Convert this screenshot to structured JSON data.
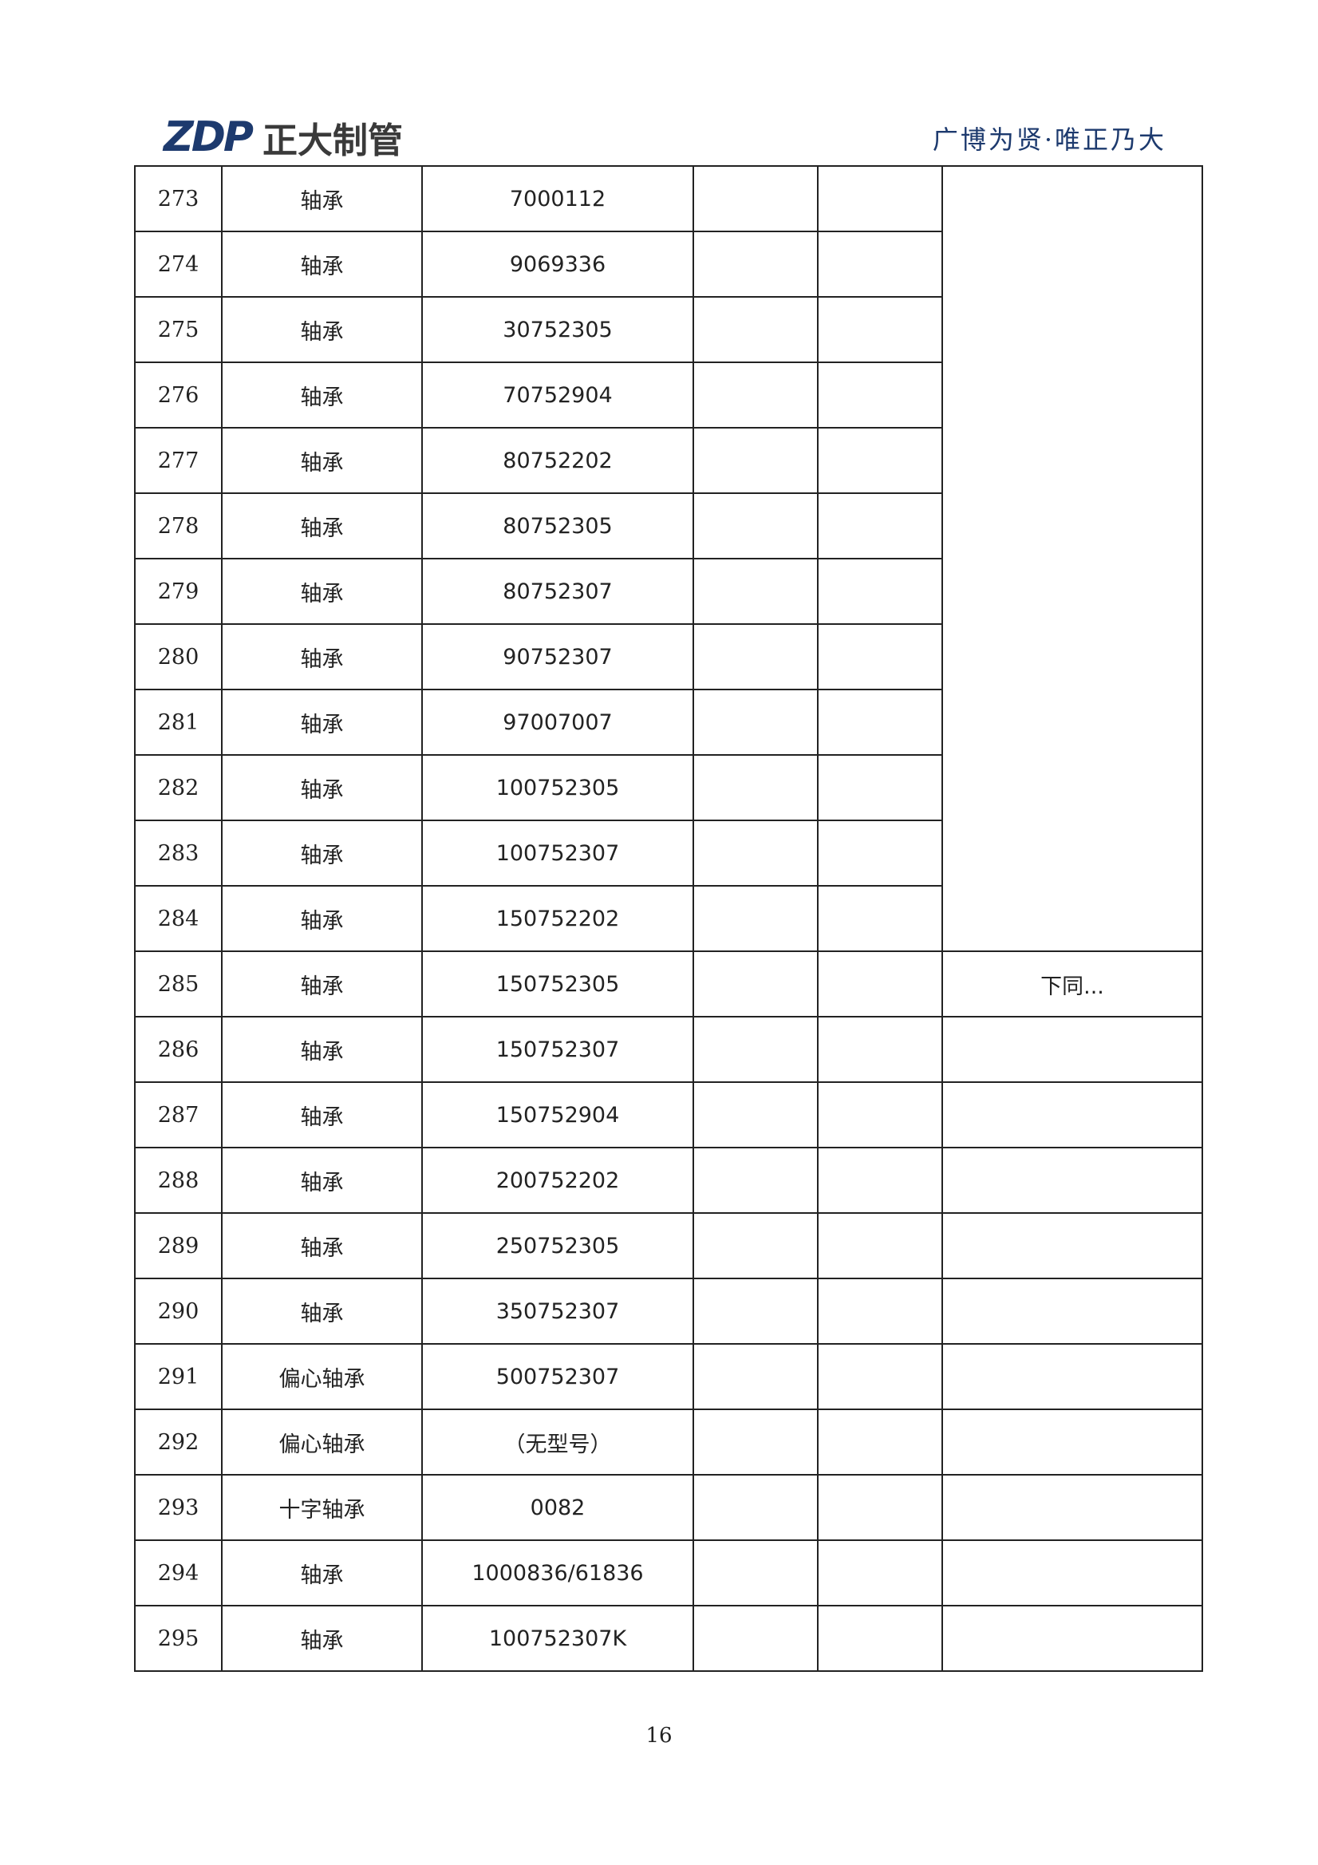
{
  "header": {
    "logo_mark": "ZDP",
    "logo_name": "正大制管",
    "slogan": "广博为贤·唯正乃大"
  },
  "rows": [
    {
      "no": "273",
      "name": "轴承",
      "model": "7000112"
    },
    {
      "no": "274",
      "name": "轴承",
      "model": "9069336"
    },
    {
      "no": "275",
      "name": "轴承",
      "model": "30752305"
    },
    {
      "no": "276",
      "name": "轴承",
      "model": "70752904"
    },
    {
      "no": "277",
      "name": "轴承",
      "model": "80752202"
    },
    {
      "no": "278",
      "name": "轴承",
      "model": "80752305"
    },
    {
      "no": "279",
      "name": "轴承",
      "model": "80752307"
    },
    {
      "no": "280",
      "name": "轴承",
      "model": "90752307"
    },
    {
      "no": "281",
      "name": "轴承",
      "model": "97007007"
    },
    {
      "no": "282",
      "name": "轴承",
      "model": "100752305"
    },
    {
      "no": "283",
      "name": "轴承",
      "model": "100752307"
    },
    {
      "no": "284",
      "name": "轴承",
      "model": "150752202"
    },
    {
      "no": "285",
      "name": "轴承",
      "model": "150752305",
      "note": "下同..."
    },
    {
      "no": "286",
      "name": "轴承",
      "model": "150752307"
    },
    {
      "no": "287",
      "name": "轴承",
      "model": "150752904"
    },
    {
      "no": "288",
      "name": "轴承",
      "model": "200752202"
    },
    {
      "no": "289",
      "name": "轴承",
      "model": "250752305"
    },
    {
      "no": "290",
      "name": "轴承",
      "model": "350752307"
    },
    {
      "no": "291",
      "name": "偏心轴承",
      "model": "500752307"
    },
    {
      "no": "292",
      "name": "偏心轴承",
      "model": "（无型号）"
    },
    {
      "no": "293",
      "name": "十字轴承",
      "model": "0082"
    },
    {
      "no": "294",
      "name": "轴承",
      "model": "1000836/61836"
    },
    {
      "no": "295",
      "name": "轴承",
      "model": "100752307K"
    }
  ],
  "footer": {
    "page_number": "16"
  }
}
